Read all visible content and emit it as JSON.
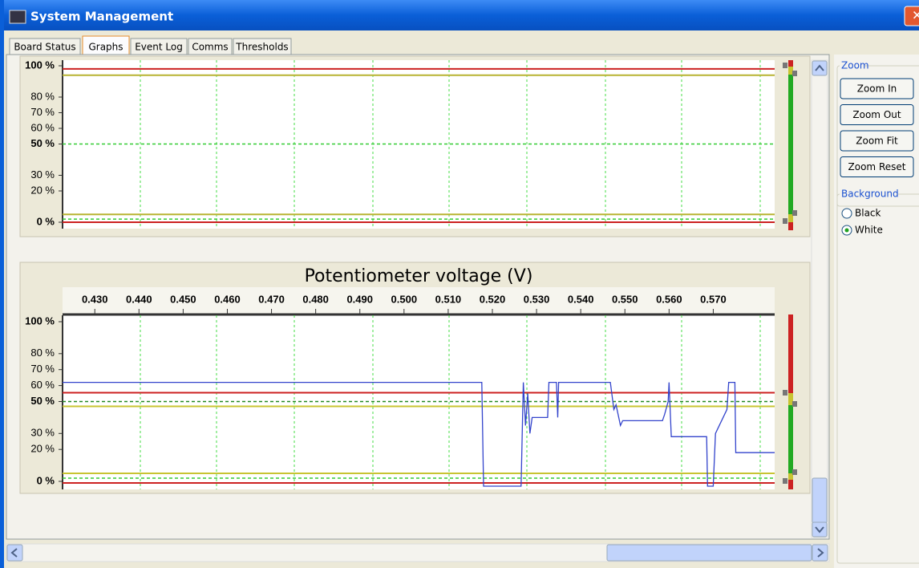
{
  "window": {
    "title": "System Management"
  },
  "tabs": [
    "Board Status",
    "Graphs",
    "Event Log",
    "Comms",
    "Thresholds"
  ],
  "active_tab": 1,
  "graphs": [
    {
      "ylim": [
        0,
        100
      ],
      "yticks": [
        {
          "value": 100,
          "label": "100 %"
        },
        {
          "value": 80,
          "label": "80 %"
        },
        {
          "value": 70,
          "label": "70 %"
        },
        {
          "value": 60,
          "label": "60 %"
        },
        {
          "value": 50,
          "label": "50 %"
        },
        {
          "value": 30,
          "label": "30 %"
        },
        {
          "value": 20,
          "label": "20 %"
        },
        {
          "value": 0,
          "label": "0 %"
        }
      ],
      "thresholds": [
        {
          "value": 98,
          "color": "#cc2222",
          "dashed": false
        },
        {
          "value": 94,
          "color": "#b8b432",
          "dashed": false
        },
        {
          "value": 50,
          "color": "#33cc33",
          "dashed": true
        },
        {
          "value": 5,
          "color": "#b8b432",
          "dashed": false
        },
        {
          "value": 2,
          "color": "#33cc33",
          "dashed": true
        },
        {
          "value": 0,
          "color": "#cc2222",
          "dashed": false
        }
      ]
    },
    {
      "title": "Potentiometer voltage (V)",
      "xlim": [
        0.4227,
        0.5839
      ],
      "xticks": [
        {
          "value": 0.43,
          "label": "0.430"
        },
        {
          "value": 0.44,
          "label": "0.440"
        },
        {
          "value": 0.45,
          "label": "0.450"
        },
        {
          "value": 0.46,
          "label": "0.460"
        },
        {
          "value": 0.47,
          "label": "0.470"
        },
        {
          "value": 0.48,
          "label": "0.480"
        },
        {
          "value": 0.49,
          "label": "0.490"
        },
        {
          "value": 0.5,
          "label": "0.500"
        },
        {
          "value": 0.51,
          "label": "0.510"
        },
        {
          "value": 0.52,
          "label": "0.520"
        },
        {
          "value": 0.53,
          "label": "0.530"
        },
        {
          "value": 0.54,
          "label": "0.540"
        },
        {
          "value": 0.55,
          "label": "0.550"
        },
        {
          "value": 0.56,
          "label": "0.560"
        },
        {
          "value": 0.57,
          "label": "0.570"
        }
      ],
      "ylim": [
        0,
        100
      ],
      "yticks": [
        {
          "value": 100,
          "label": "100 %"
        },
        {
          "value": 80,
          "label": "80 %"
        },
        {
          "value": 70,
          "label": "70 %"
        },
        {
          "value": 60,
          "label": "60 %"
        },
        {
          "value": 50,
          "label": "50 %"
        },
        {
          "value": 30,
          "label": "30 %"
        },
        {
          "value": 20,
          "label": "20 %"
        },
        {
          "value": 0,
          "label": "0 %"
        }
      ],
      "thresholds": [
        {
          "value": 55.5,
          "color": "#cc2222",
          "dashed": false
        },
        {
          "value": 50,
          "color": "#228822",
          "dashed": true
        },
        {
          "value": 47,
          "color": "#c8c432",
          "dashed": false
        },
        {
          "value": 5,
          "color": "#c8c432",
          "dashed": false
        },
        {
          "value": 2,
          "color": "#33cc33",
          "dashed": true
        },
        {
          "value": -1,
          "color": "#cc2222",
          "dashed": false
        }
      ],
      "trace": {
        "color": "#3344cc",
        "x": [
          0.4227,
          0.5176,
          0.518,
          0.5265,
          0.527,
          0.5275,
          0.528,
          0.5285,
          0.529,
          0.5325,
          0.5328,
          0.5345,
          0.5348,
          0.535,
          0.5467,
          0.5475,
          0.548,
          0.549,
          0.5495,
          0.5585,
          0.559,
          0.5598,
          0.56,
          0.5605,
          0.5685,
          0.5687,
          0.57,
          0.5705,
          0.5731,
          0.5735,
          0.5749,
          0.5751,
          0.5839
        ],
        "y": [
          62,
          62,
          -3,
          -3,
          62,
          35,
          55,
          30,
          40,
          40,
          62,
          62,
          40,
          62,
          62,
          45,
          48,
          35,
          38,
          38,
          42,
          50,
          62,
          28,
          28,
          -3,
          -3,
          30,
          45,
          62,
          62,
          18,
          18
        ]
      }
    }
  ],
  "zoom": {
    "title": "Zoom",
    "buttons": [
      "Zoom In",
      "Zoom Out",
      "Zoom Fit",
      "Zoom Reset"
    ]
  },
  "background": {
    "title": "Background",
    "options": [
      "Black",
      "White"
    ],
    "selected": 1
  }
}
